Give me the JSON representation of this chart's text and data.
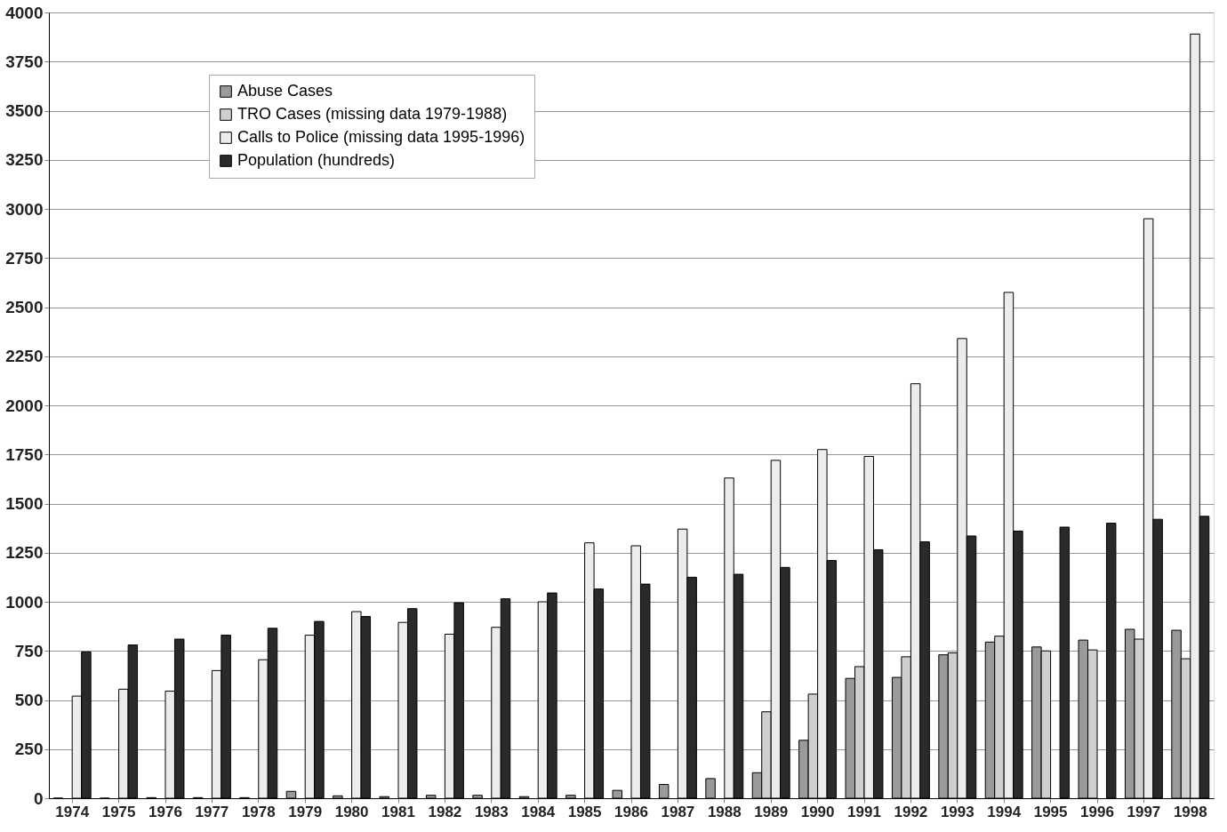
{
  "chart_data": {
    "type": "bar",
    "categories": [
      "1974",
      "1975",
      "1976",
      "1977",
      "1978",
      "1979",
      "1980",
      "1981",
      "1982",
      "1983",
      "1984",
      "1985",
      "1986",
      "1987",
      "1988",
      "1989",
      "1990",
      "1991",
      "1992",
      "1993",
      "1994",
      "1995",
      "1996",
      "1997",
      "1998"
    ],
    "series": [
      {
        "name": "Abuse Cases",
        "color": "#9a9a9a",
        "values": [
          0,
          0,
          3,
          3,
          3,
          35,
          12,
          8,
          15,
          15,
          8,
          15,
          40,
          70,
          100,
          130,
          295,
          610,
          615,
          730,
          795,
          770,
          805,
          860,
          855
        ]
      },
      {
        "name": "TRO Cases (missing data 1979-1988)",
        "color": "#cfcfcf",
        "values": [
          null,
          null,
          null,
          null,
          null,
          null,
          null,
          null,
          null,
          null,
          null,
          null,
          null,
          null,
          null,
          440,
          530,
          670,
          720,
          740,
          825,
          750,
          755,
          810,
          710
        ]
      },
      {
        "name": "Calls to Police (missing data 1995-1996)",
        "color": "#ececec",
        "values": [
          520,
          555,
          545,
          650,
          705,
          830,
          950,
          895,
          835,
          870,
          1000,
          1300,
          1285,
          1370,
          1630,
          1720,
          1775,
          1740,
          2110,
          2340,
          2575,
          null,
          null,
          2950,
          3890
        ]
      },
      {
        "name": "Population (hundreds)",
        "color": "#2a2a2a",
        "values": [
          745,
          780,
          810,
          830,
          865,
          900,
          925,
          965,
          995,
          1015,
          1045,
          1065,
          1090,
          1125,
          1140,
          1175,
          1210,
          1265,
          1305,
          1335,
          1360,
          1380,
          1400,
          1420,
          1435
        ]
      }
    ],
    "ylim": [
      0,
      4000
    ],
    "yticks": [
      0,
      250,
      500,
      750,
      1000,
      1250,
      1500,
      1750,
      2000,
      2250,
      2500,
      2750,
      3000,
      3250,
      3500,
      3750,
      4000
    ],
    "grid": "y",
    "legend": "top left"
  }
}
